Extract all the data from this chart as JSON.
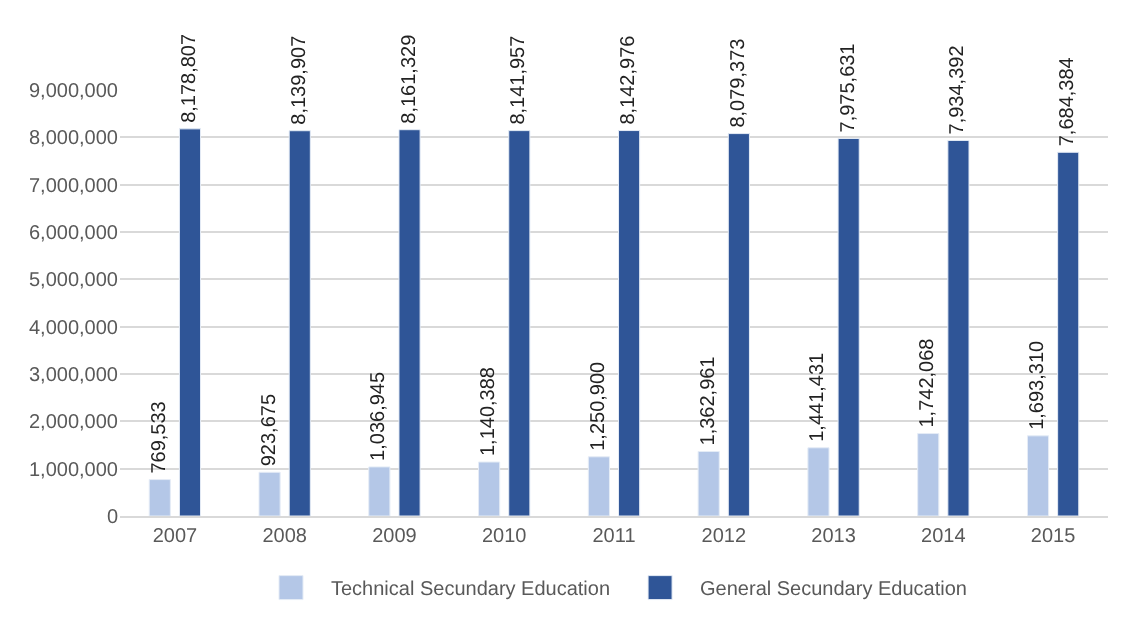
{
  "chart_data": {
    "type": "bar",
    "categories": [
      "2007",
      "2008",
      "2009",
      "2010",
      "2011",
      "2012",
      "2013",
      "2014",
      "2015"
    ],
    "series": [
      {
        "name": "Technical Secundary Education",
        "color": "#b4c7e7",
        "values": [
          769533,
          923675,
          1036945,
          1140388,
          1250900,
          1362961,
          1441431,
          1742068,
          1693310
        ],
        "value_labels": [
          "769,533",
          "923,675",
          "1,036,945",
          "1,140,388",
          "1,250,900",
          "1,362,961",
          "1,441,431",
          "1,742,068",
          "1,693,310"
        ]
      },
      {
        "name": "General Secundary Education",
        "color": "#2f5597",
        "values": [
          8178807,
          8139907,
          8161329,
          8141957,
          8142976,
          8079373,
          7975631,
          7934392,
          7684384
        ],
        "value_labels": [
          "8,178,807",
          "8,139,907",
          "8,161,329",
          "8,141,957",
          "8,142,976",
          "8,079,373",
          "7,975,631",
          "7,934,392",
          "7,684,384"
        ]
      }
    ],
    "ylim": [
      0,
      9000000
    ],
    "yticks": [
      {
        "value": 0,
        "label": "0"
      },
      {
        "value": 1000000,
        "label": "1,000,000"
      },
      {
        "value": 2000000,
        "label": "2,000,000"
      },
      {
        "value": 3000000,
        "label": "3,000,000"
      },
      {
        "value": 4000000,
        "label": "4,000,000"
      },
      {
        "value": 5000000,
        "label": "5,000,000"
      },
      {
        "value": 6000000,
        "label": "6,000,000"
      },
      {
        "value": 7000000,
        "label": "7,000,000"
      },
      {
        "value": 8000000,
        "label": "8,000,000"
      },
      {
        "value": 9000000,
        "label": "9,000,000"
      }
    ],
    "grid": "y",
    "legend": "bottom"
  }
}
